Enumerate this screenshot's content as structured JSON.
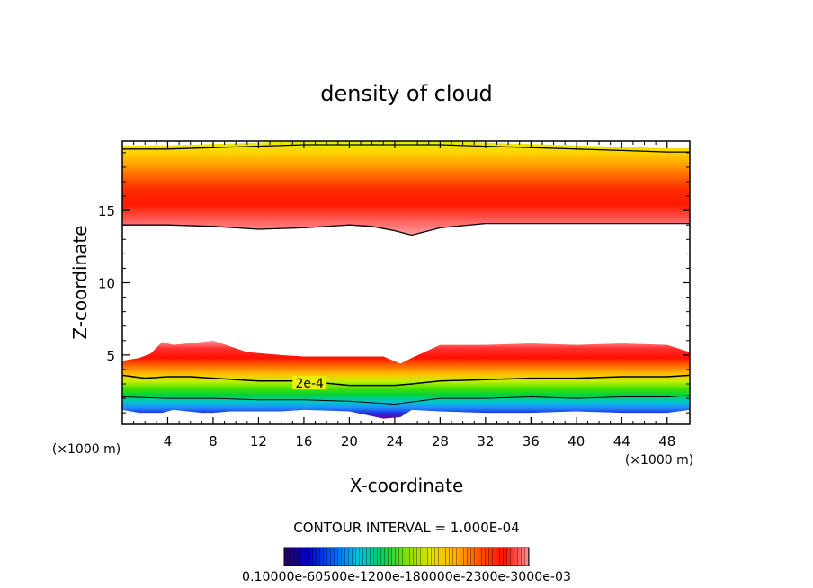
{
  "chart_data": {
    "type": "heatmap",
    "title": "density of cloud",
    "xlabel": "X-coordinate",
    "ylabel": "Z-coordinate",
    "x_unit": "(×1000 m)",
    "x_unit_right": "(×1000 m)",
    "xlim": [
      0,
      50
    ],
    "ylim": [
      0.2,
      19.8
    ],
    "x_ticks": [
      "4",
      "8",
      "12",
      "16",
      "20",
      "24",
      "28",
      "32",
      "36",
      "40",
      "44",
      "48"
    ],
    "x_tick_values": [
      4,
      8,
      12,
      16,
      20,
      24,
      28,
      32,
      36,
      40,
      44,
      48
    ],
    "y_ticks": [
      "5",
      "10",
      "15"
    ],
    "y_tick_values": [
      5,
      10,
      15
    ],
    "contour_label": "2e-4",
    "contour_interval_text": "CONTOUR INTERVAL = 1.000E-04",
    "colorbar_labels_text": "0.10000e-60500e-1200e-180000e-2300e-3000e-03",
    "colorbar_colors": [
      "#2a0060",
      "#0000cc",
      "#0080ff",
      "#00c0c0",
      "#00d000",
      "#80e000",
      "#e0e000",
      "#ffb000",
      "#ff5000",
      "#ff0000",
      "#ff8080"
    ],
    "upper_band": {
      "x": [
        0,
        4,
        8,
        12,
        16,
        20,
        22,
        24,
        25.5,
        28,
        32,
        36,
        40,
        44,
        48,
        50
      ],
      "bottom": [
        14.0,
        14.0,
        13.9,
        13.7,
        13.8,
        14.0,
        13.9,
        13.6,
        13.3,
        13.8,
        14.1,
        14.1,
        14.1,
        14.1,
        14.1,
        14.1
      ],
      "top": [
        19.5,
        19.5,
        19.6,
        19.7,
        19.8,
        19.8,
        19.8,
        19.8,
        19.8,
        19.8,
        19.7,
        19.6,
        19.5,
        19.4,
        19.3,
        19.3
      ]
    },
    "lower_band": {
      "x": [
        0,
        1.5,
        2.5,
        3.5,
        4.5,
        7,
        8,
        9.5,
        11,
        14,
        16,
        20,
        23,
        24.5,
        25.5,
        28,
        32,
        36,
        40,
        44,
        48,
        50
      ],
      "top": [
        4.6,
        4.8,
        5.1,
        5.9,
        5.7,
        5.9,
        6.0,
        5.6,
        5.2,
        5.0,
        4.9,
        4.9,
        4.9,
        4.4,
        4.8,
        5.7,
        5.7,
        5.8,
        5.7,
        5.8,
        5.7,
        5.2
      ],
      "bottom": [
        1.2,
        1.0,
        1.0,
        1.0,
        1.2,
        1.0,
        1.0,
        1.1,
        1.1,
        1.1,
        1.2,
        1.1,
        0.6,
        0.7,
        1.2,
        1.1,
        1.0,
        1.0,
        1.1,
        1.0,
        1.0,
        1.2
      ]
    },
    "contour_2e4": {
      "x": [
        0,
        2,
        4,
        6,
        8,
        10,
        12,
        16,
        20,
        24,
        25.5,
        28,
        32,
        36,
        40,
        44,
        48,
        50
      ],
      "y": [
        3.6,
        3.4,
        3.5,
        3.5,
        3.4,
        3.3,
        3.2,
        3.2,
        2.9,
        2.9,
        3.0,
        3.2,
        3.3,
        3.4,
        3.4,
        3.5,
        3.5,
        3.6
      ]
    },
    "contour_lower": {
      "x": [
        0,
        4,
        8,
        12,
        16,
        20,
        24,
        28,
        32,
        36,
        40,
        44,
        48,
        50
      ],
      "y": [
        2.1,
        2.0,
        2.0,
        1.9,
        1.9,
        1.8,
        1.6,
        2.0,
        2.0,
        2.1,
        2.0,
        2.1,
        2.1,
        2.2
      ]
    }
  }
}
